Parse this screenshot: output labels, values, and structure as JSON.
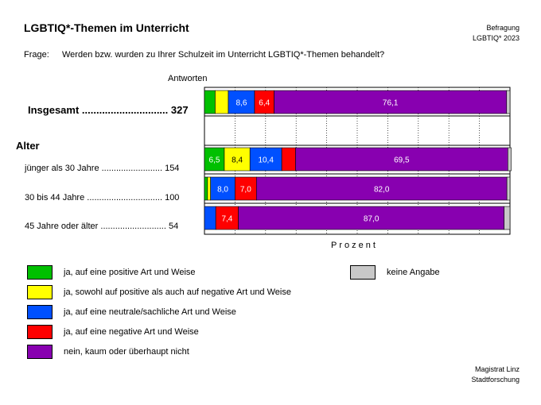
{
  "header": {
    "title": "LGBTIQ*-Themen im Unterricht",
    "survey_line1": "Befragung",
    "survey_line2": "LGBTIQ* 2023"
  },
  "question": {
    "label": "Frage:",
    "text": "Werden bzw. wurden zu Ihrer Schulzeit im Unterricht LGBTIQ*-Themen behandelt?"
  },
  "footer": {
    "line1": "Magistrat Linz",
    "line2": "Stadtforschung"
  },
  "chart_data": {
    "type": "bar",
    "orientation": "horizontal",
    "stacked": true,
    "responses_header": "Antworten",
    "xlabel": "Prozent",
    "xlim": [
      0,
      100
    ],
    "group_title": "Alter",
    "grid": true,
    "legend_position": "bottom",
    "categories": [
      "Insgesamt .............................. 327",
      "jünger als 30 Jahre ......................... 154",
      "30 bis 44 Jahre ............................... 100",
      "45 Jahre oder älter ........................... 54"
    ],
    "series": [
      {
        "name": "ja, auf eine positive Art und Weise",
        "color": "#00c000",
        "values": [
          3.5,
          6.5,
          1.0,
          0.0
        ]
      },
      {
        "name": "ja, sowohl auf positive als auch auf negative Art und Weise",
        "color": "#ffff00",
        "values": [
          4.3,
          8.4,
          1.0,
          0.0
        ]
      },
      {
        "name": "ja, auf eine neutrale/sachliche Art und Weise",
        "color": "#0050ff",
        "values": [
          8.6,
          10.4,
          8.0,
          3.7
        ]
      },
      {
        "name": "ja, auf eine negative Art und Weise",
        "color": "#ff0000",
        "values": [
          6.4,
          4.5,
          7.0,
          7.4
        ]
      },
      {
        "name": "nein, kaum oder überhaupt nicht",
        "color": "#8800b0",
        "values": [
          76.1,
          69.5,
          82.0,
          87.0
        ]
      },
      {
        "name": "keine Angabe",
        "color": "#c8c8c8",
        "values": [
          1.1,
          1.1,
          1.0,
          1.9
        ]
      }
    ],
    "data_labels": [
      [
        null,
        null,
        "8,6",
        "6,4",
        "76,1",
        null
      ],
      [
        "6,5",
        "8,4",
        "10,4",
        null,
        "69,5",
        null
      ],
      [
        null,
        null,
        "8,0",
        "7,0",
        "82,0",
        null
      ],
      [
        null,
        null,
        null,
        "7,4",
        "87,0",
        null
      ]
    ]
  }
}
